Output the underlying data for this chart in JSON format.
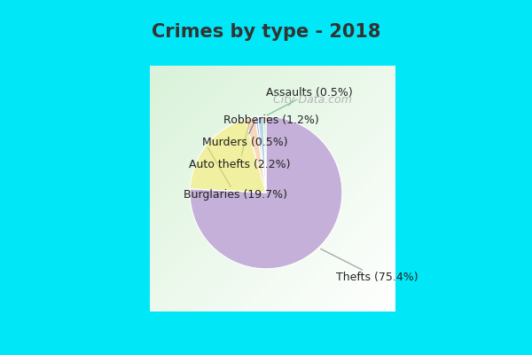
{
  "title": "Crimes by type - 2018",
  "labels": [
    "Thefts",
    "Burglaries",
    "Auto thefts",
    "Murders",
    "Robberies",
    "Assaults"
  ],
  "percentages": [
    75.4,
    19.7,
    2.2,
    0.5,
    1.2,
    0.5
  ],
  "colors": [
    "#c4b0d8",
    "#f0f0a0",
    "#f8d8b8",
    "#a8bce0",
    "#b8d8e8",
    "#c0e8c0"
  ],
  "background_outer": "#00e8f8",
  "title_color": "#333333",
  "title_fontsize": 15,
  "label_fontsize": 9,
  "watermark": " City-Data.com",
  "wedge_edgecolor": "#ffffff",
  "thefts_label_color": "#444444",
  "annotation_line_colors": {
    "Thefts": "#aaaaaa",
    "Burglaries": "#d0d080",
    "Auto thefts": "#d0d080",
    "Murders": "#8888bb",
    "Robberies": "#e8c080",
    "Assaults": "#80c8a0"
  }
}
